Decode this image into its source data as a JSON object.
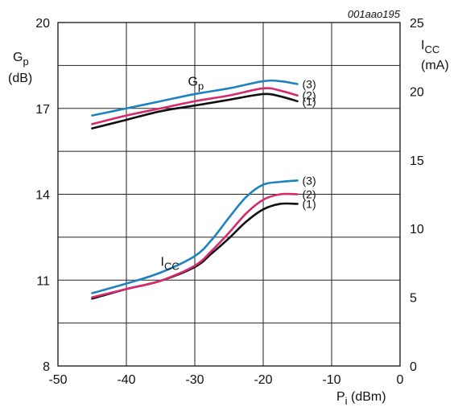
{
  "chart_data": {
    "type": "line",
    "figure_code": "001aao195",
    "x_axis": {
      "label_main": "P",
      "label_sub": "i",
      "label_unit": " (dBm)",
      "min": -50,
      "max": 0,
      "ticks": [
        -50,
        -40,
        -30,
        -20,
        -10,
        0
      ]
    },
    "y_left": {
      "label_main": "G",
      "label_sub": "p",
      "label_unit": "(dB)",
      "min": 8,
      "max": 20,
      "ticks": [
        8,
        11,
        14,
        17,
        20
      ]
    },
    "y_right": {
      "label_main": "I",
      "label_sub": "CC",
      "label_unit": "(mA)",
      "min": 0,
      "max": 25,
      "ticks": [
        0,
        5,
        10,
        15,
        20,
        25
      ]
    },
    "grid": true,
    "annotations": {
      "gp": {
        "main": "G",
        "sub": "p",
        "x": -31,
        "y": 17.8
      },
      "icc": {
        "main": "I",
        "sub": "CC",
        "x": -35,
        "y": 11.5
      }
    },
    "series": [
      {
        "group": "Gp",
        "label": "(1)",
        "color": "#111111",
        "axis": "left",
        "x": [
          -45,
          -40,
          -35,
          -30,
          -25,
          -20,
          -17.5,
          -15
        ],
        "y": [
          16.3,
          16.6,
          16.9,
          17.1,
          17.3,
          17.5,
          17.42,
          17.25
        ]
      },
      {
        "group": "Gp",
        "label": "(2)",
        "color": "#d62a6e",
        "axis": "left",
        "x": [
          -45,
          -40,
          -35,
          -30,
          -25,
          -20,
          -17.5,
          -15
        ],
        "y": [
          16.45,
          16.75,
          17.0,
          17.25,
          17.45,
          17.7,
          17.62,
          17.45
        ]
      },
      {
        "group": "Gp",
        "label": "(3)",
        "color": "#1f82c0",
        "axis": "left",
        "x": [
          -45,
          -40,
          -35,
          -30,
          -25,
          -20,
          -17.5,
          -15
        ],
        "y": [
          16.75,
          17.0,
          17.25,
          17.5,
          17.7,
          17.95,
          17.95,
          17.85
        ]
      },
      {
        "group": "Icc",
        "label": "(1)",
        "color": "#111111",
        "axis": "right",
        "x": [
          -45,
          -40,
          -35,
          -30,
          -27.5,
          -25,
          -22.5,
          -20,
          -17.5,
          -15
        ],
        "y": [
          4.9,
          5.6,
          6.2,
          7.2,
          8.2,
          9.3,
          10.5,
          11.4,
          11.8,
          11.8
        ]
      },
      {
        "group": "Icc",
        "label": "(2)",
        "color": "#d62a6e",
        "axis": "right",
        "x": [
          -45,
          -40,
          -35,
          -30,
          -27.5,
          -25,
          -22.5,
          -20,
          -17.5,
          -15
        ],
        "y": [
          5.0,
          5.6,
          6.2,
          7.3,
          8.4,
          9.7,
          11.1,
          12.1,
          12.5,
          12.5
        ]
      },
      {
        "group": "Icc",
        "label": "(3)",
        "color": "#1f82c0",
        "axis": "right",
        "x": [
          -45,
          -40,
          -35,
          -30,
          -27.5,
          -25,
          -22.5,
          -20,
          -17.5,
          -15
        ],
        "y": [
          5.3,
          6.0,
          6.8,
          8.0,
          9.2,
          10.8,
          12.3,
          13.2,
          13.4,
          13.5
        ]
      }
    ]
  }
}
